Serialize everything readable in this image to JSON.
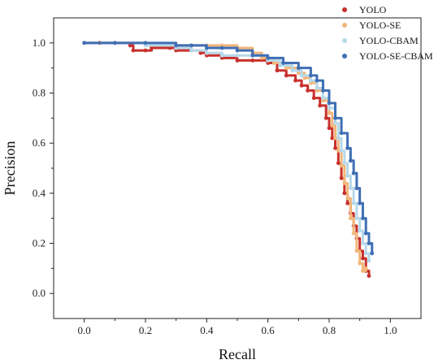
{
  "chart_data": {
    "type": "line",
    "xlabel": "Recall",
    "ylabel": "Precision",
    "xlim": [
      -0.1,
      1.1
    ],
    "ylim": [
      -0.1,
      1.1
    ],
    "xticks": [
      "0.0",
      "0.2",
      "0.4",
      "0.6",
      "0.8",
      "1.0"
    ],
    "yticks": [
      "0.0",
      "0.2",
      "0.4",
      "0.6",
      "0.8",
      "1.0"
    ],
    "legend_position": "top-right",
    "series": [
      {
        "name": "YOLO",
        "color": "#c8302c",
        "points": [
          [
            0.0,
            1.0
          ],
          [
            0.05,
            1.0
          ],
          [
            0.1,
            1.0
          ],
          [
            0.15,
            0.99
          ],
          [
            0.16,
            0.97
          ],
          [
            0.2,
            0.97
          ],
          [
            0.22,
            0.98
          ],
          [
            0.28,
            0.98
          ],
          [
            0.3,
            0.97
          ],
          [
            0.35,
            0.97
          ],
          [
            0.38,
            0.96
          ],
          [
            0.4,
            0.95
          ],
          [
            0.45,
            0.94
          ],
          [
            0.5,
            0.93
          ],
          [
            0.55,
            0.93
          ],
          [
            0.6,
            0.92
          ],
          [
            0.63,
            0.89
          ],
          [
            0.66,
            0.87
          ],
          [
            0.69,
            0.85
          ],
          [
            0.71,
            0.83
          ],
          [
            0.73,
            0.81
          ],
          [
            0.75,
            0.78
          ],
          [
            0.77,
            0.75
          ],
          [
            0.79,
            0.7
          ],
          [
            0.8,
            0.66
          ],
          [
            0.81,
            0.62
          ],
          [
            0.82,
            0.58
          ],
          [
            0.83,
            0.52
          ],
          [
            0.84,
            0.46
          ],
          [
            0.85,
            0.4
          ],
          [
            0.86,
            0.36
          ],
          [
            0.87,
            0.32
          ],
          [
            0.88,
            0.27
          ],
          [
            0.89,
            0.22
          ],
          [
            0.9,
            0.17
          ],
          [
            0.91,
            0.14
          ],
          [
            0.92,
            0.09
          ],
          [
            0.93,
            0.07
          ]
        ]
      },
      {
        "name": "YOLO-SE",
        "color": "#f2b77b",
        "points": [
          [
            0.0,
            1.0
          ],
          [
            0.1,
            1.0
          ],
          [
            0.2,
            0.99
          ],
          [
            0.3,
            0.99
          ],
          [
            0.35,
            0.99
          ],
          [
            0.4,
            0.99
          ],
          [
            0.45,
            0.99
          ],
          [
            0.5,
            0.98
          ],
          [
            0.55,
            0.96
          ],
          [
            0.58,
            0.94
          ],
          [
            0.62,
            0.92
          ],
          [
            0.66,
            0.9
          ],
          [
            0.7,
            0.88
          ],
          [
            0.72,
            0.86
          ],
          [
            0.74,
            0.84
          ],
          [
            0.76,
            0.81
          ],
          [
            0.78,
            0.77
          ],
          [
            0.8,
            0.72
          ],
          [
            0.81,
            0.67
          ],
          [
            0.82,
            0.62
          ],
          [
            0.83,
            0.57
          ],
          [
            0.84,
            0.51
          ],
          [
            0.85,
            0.44
          ],
          [
            0.86,
            0.38
          ],
          [
            0.87,
            0.3
          ],
          [
            0.88,
            0.24
          ],
          [
            0.89,
            0.17
          ],
          [
            0.9,
            0.12
          ],
          [
            0.91,
            0.09
          ],
          [
            0.92,
            0.1
          ]
        ]
      },
      {
        "name": "YOLO-CBAM",
        "color": "#b7d9ea",
        "points": [
          [
            0.0,
            1.0
          ],
          [
            0.1,
            1.0
          ],
          [
            0.2,
            0.99
          ],
          [
            0.3,
            0.98
          ],
          [
            0.35,
            0.97
          ],
          [
            0.4,
            0.96
          ],
          [
            0.45,
            0.95
          ],
          [
            0.5,
            0.95
          ],
          [
            0.55,
            0.95
          ],
          [
            0.6,
            0.93
          ],
          [
            0.64,
            0.91
          ],
          [
            0.68,
            0.89
          ],
          [
            0.71,
            0.87
          ],
          [
            0.74,
            0.85
          ],
          [
            0.76,
            0.82
          ],
          [
            0.78,
            0.78
          ],
          [
            0.8,
            0.74
          ],
          [
            0.82,
            0.68
          ],
          [
            0.83,
            0.62
          ],
          [
            0.84,
            0.57
          ],
          [
            0.85,
            0.52
          ],
          [
            0.86,
            0.47
          ],
          [
            0.87,
            0.42
          ],
          [
            0.88,
            0.36
          ],
          [
            0.89,
            0.3
          ],
          [
            0.9,
            0.25
          ],
          [
            0.91,
            0.2
          ],
          [
            0.92,
            0.16
          ],
          [
            0.93,
            0.13
          ]
        ]
      },
      {
        "name": "YOLO-SE-CBAM",
        "color": "#3f6fb5",
        "points": [
          [
            0.0,
            1.0
          ],
          [
            0.1,
            1.0
          ],
          [
            0.2,
            1.0
          ],
          [
            0.3,
            0.99
          ],
          [
            0.35,
            0.99
          ],
          [
            0.4,
            0.98
          ],
          [
            0.45,
            0.98
          ],
          [
            0.5,
            0.97
          ],
          [
            0.55,
            0.95
          ],
          [
            0.6,
            0.94
          ],
          [
            0.65,
            0.92
          ],
          [
            0.7,
            0.9
          ],
          [
            0.74,
            0.87
          ],
          [
            0.76,
            0.85
          ],
          [
            0.78,
            0.81
          ],
          [
            0.8,
            0.76
          ],
          [
            0.82,
            0.7
          ],
          [
            0.84,
            0.64
          ],
          [
            0.86,
            0.58
          ],
          [
            0.87,
            0.53
          ],
          [
            0.88,
            0.48
          ],
          [
            0.89,
            0.42
          ],
          [
            0.9,
            0.36
          ],
          [
            0.91,
            0.3
          ],
          [
            0.92,
            0.24
          ],
          [
            0.93,
            0.2
          ],
          [
            0.94,
            0.16
          ]
        ]
      }
    ]
  }
}
